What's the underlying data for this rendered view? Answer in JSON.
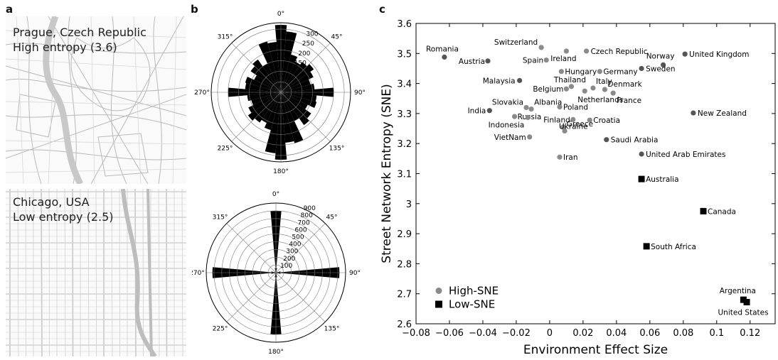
{
  "panels": {
    "a": "a",
    "b": "b",
    "c": "c"
  },
  "maps": [
    {
      "city": "Prague, Czech Republic",
      "entropy_label": "High entropy (3.6)"
    },
    {
      "city": "Chicago, USA",
      "entropy_label": "Low entropy (2.5)"
    }
  ],
  "chart_data": [
    {
      "type": "polar-histogram",
      "city": "Prague, Czech Republic",
      "angle_ticks": [
        "0°",
        "45°",
        "90°",
        "135°",
        "180°",
        "225°",
        "270°",
        "315°"
      ],
      "radial_ticks": [
        150,
        200,
        250,
        300
      ],
      "rmax": 330,
      "bin_width_deg": 10,
      "bins_deg": [
        0,
        10,
        20,
        30,
        40,
        50,
        60,
        70,
        80,
        90,
        100,
        110,
        120,
        130,
        140,
        150,
        160,
        170,
        180,
        190,
        200,
        210,
        220,
        230,
        240,
        250,
        260,
        270,
        280,
        290,
        300,
        310,
        320,
        330,
        340,
        350
      ],
      "values": [
        320,
        290,
        185,
        160,
        175,
        190,
        170,
        145,
        160,
        250,
        170,
        175,
        140,
        175,
        190,
        150,
        250,
        240,
        320,
        290,
        185,
        160,
        175,
        190,
        170,
        145,
        160,
        250,
        170,
        175,
        140,
        175,
        190,
        150,
        250,
        240
      ]
    },
    {
      "type": "polar-histogram",
      "city": "Chicago, USA",
      "angle_ticks": [
        "0°",
        "45°",
        "90°",
        "135°",
        "180°",
        "225°",
        "270°",
        "315°"
      ],
      "radial_ticks": [
        100,
        200,
        300,
        400,
        500,
        600,
        700,
        800,
        900
      ],
      "rmax": 900,
      "bin_width_deg": 10,
      "bins_deg": [
        0,
        10,
        20,
        30,
        40,
        50,
        60,
        70,
        80,
        90,
        100,
        110,
        120,
        130,
        140,
        150,
        160,
        170,
        180,
        190,
        200,
        210,
        220,
        230,
        240,
        250,
        260,
        270,
        280,
        290,
        300,
        310,
        320,
        330,
        340,
        350
      ],
      "values": [
        800,
        60,
        25,
        15,
        12,
        12,
        15,
        25,
        60,
        820,
        60,
        25,
        15,
        12,
        12,
        15,
        25,
        60,
        800,
        60,
        25,
        15,
        12,
        12,
        15,
        25,
        60,
        820,
        60,
        25,
        15,
        12,
        12,
        15,
        25,
        60
      ]
    },
    {
      "type": "scatter",
      "xlabel": "Environment Effect Size",
      "ylabel": "Street Network Entropy (SNE)",
      "xlim": [
        -0.08,
        0.135
      ],
      "ylim": [
        2.6,
        3.6
      ],
      "xticks": [
        -0.08,
        -0.06,
        -0.04,
        -0.02,
        0,
        0.02,
        0.04,
        0.06,
        0.08,
        0.1,
        0.12
      ],
      "xtick_labels": [
        "−0.08",
        "−0.06",
        "−0.04",
        "−0.02",
        "0",
        "0.02",
        "0.04",
        "0.06",
        "0.08",
        "0.1",
        "0.12"
      ],
      "yticks": [
        2.6,
        2.7,
        2.8,
        2.9,
        3,
        3.1,
        3.2,
        3.3,
        3.4,
        3.5,
        3.6
      ],
      "ytick_labels": [
        "2.6",
        "2.7",
        "2.8",
        "2.9",
        "3",
        "3.1",
        "3.2",
        "3.3",
        "3.4",
        "3.5",
        "3.6"
      ],
      "legend": {
        "placement": "bottom-left",
        "entries": [
          "High-SNE",
          "Low-SNE"
        ]
      },
      "colors": {
        "high": "#8a8a8a",
        "low": "#000000",
        "dark_high": "#555555"
      },
      "series": [
        {
          "name": "High-SNE",
          "marker": "circle",
          "points": [
            {
              "label": "Romania",
              "x": -0.063,
              "y": 3.488
            },
            {
              "label": "Austria",
              "x": -0.037,
              "y": 3.475
            },
            {
              "label": "Switzerland",
              "x": -0.005,
              "y": 3.52
            },
            {
              "label": "Spain",
              "x": -0.002,
              "y": 3.478
            },
            {
              "label": "Ireland",
              "x": 0.01,
              "y": 3.508
            },
            {
              "label": "Czech Republic",
              "x": 0.022,
              "y": 3.508
            },
            {
              "label": "Norway",
              "x": 0.068,
              "y": 3.462
            },
            {
              "label": "United Kingdom",
              "x": 0.081,
              "y": 3.498
            },
            {
              "label": "Sweden",
              "x": 0.055,
              "y": 3.45
            },
            {
              "label": "Malaysia",
              "x": -0.018,
              "y": 3.41
            },
            {
              "label": "Hungary",
              "x": 0.007,
              "y": 3.44
            },
            {
              "label": "Germany",
              "x": 0.03,
              "y": 3.44
            },
            {
              "label": "Thailand",
              "x": 0.013,
              "y": 3.39
            },
            {
              "label": "Italy",
              "x": 0.026,
              "y": 3.385
            },
            {
              "label": "Belgium",
              "x": 0.01,
              "y": 3.382
            },
            {
              "label": "Denmark",
              "x": 0.033,
              "y": 3.38
            },
            {
              "label": "France",
              "x": 0.038,
              "y": 3.368
            },
            {
              "label": "Netherlands",
              "x": 0.021,
              "y": 3.375
            },
            {
              "label": "Slovakia",
              "x": -0.014,
              "y": 3.32
            },
            {
              "label": "Albania",
              "x": -0.011,
              "y": 3.315
            },
            {
              "label": "Poland",
              "x": 0.006,
              "y": 3.322
            },
            {
              "label": "India",
              "x": -0.036,
              "y": 3.31
            },
            {
              "label": "Russia",
              "x": -0.021,
              "y": 3.29
            },
            {
              "label": "Indonesia",
              "x": -0.013,
              "y": 3.287
            },
            {
              "label": "Finland",
              "x": 0.014,
              "y": 3.28
            },
            {
              "label": "Croatia",
              "x": 0.024,
              "y": 3.278
            },
            {
              "label": "Greece",
              "x": 0.008,
              "y": 3.255
            },
            {
              "label": "New Zealand",
              "x": 0.086,
              "y": 3.302
            },
            {
              "label": "VietNam",
              "x": -0.012,
              "y": 3.222
            },
            {
              "label": "Ukraine",
              "x": 0.009,
              "y": 3.242
            },
            {
              "label": "Saudi Arabia",
              "x": 0.034,
              "y": 3.213
            },
            {
              "label": "Iran",
              "x": 0.006,
              "y": 3.155
            },
            {
              "label": "United Arab Emirates",
              "x": 0.055,
              "y": 3.165
            }
          ]
        },
        {
          "name": "Low-SNE",
          "marker": "square",
          "points": [
            {
              "label": "Australia",
              "x": 0.055,
              "y": 3.082
            },
            {
              "label": "Canada",
              "x": 0.092,
              "y": 2.975
            },
            {
              "label": "South Africa",
              "x": 0.058,
              "y": 2.858
            },
            {
              "label": "Argentina",
              "x": 0.116,
              "y": 2.68
            },
            {
              "label": "United States",
              "x": 0.118,
              "y": 2.672
            }
          ]
        }
      ]
    }
  ]
}
